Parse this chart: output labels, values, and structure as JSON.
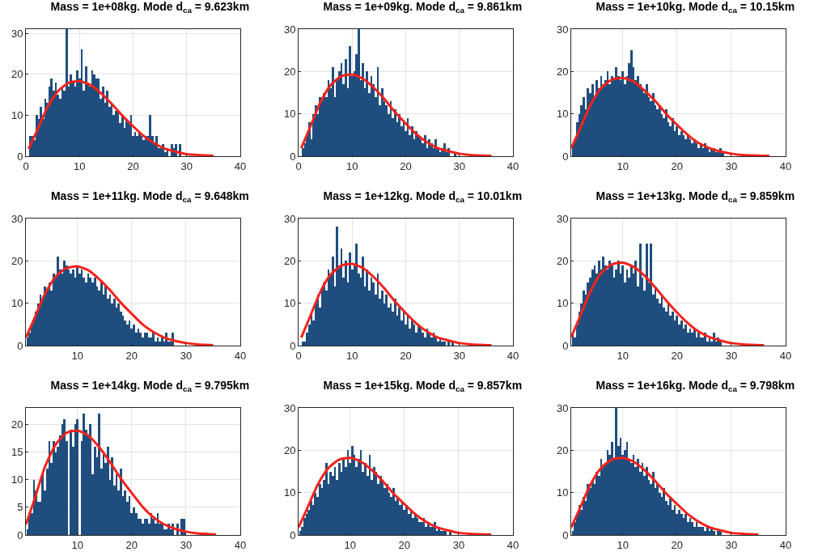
{
  "chart_data": [
    {
      "type": "histogram",
      "title": "Mass = 1e+08kg. Mode d$_{ca}$ = 9.623km",
      "xlim": [
        0,
        40
      ],
      "xticks": [
        0,
        10,
        20,
        30,
        40
      ],
      "ylim": [
        0,
        31
      ],
      "yticks": [
        0,
        10,
        20,
        30
      ],
      "grid": true,
      "series": [
        {
          "type": "histogram",
          "color": "#1f4e7e",
          "bins": [
            0.6,
            1,
            1.4,
            1.8,
            2.2,
            2.6,
            3,
            3.4,
            3.8,
            4.2,
            4.6,
            5,
            5.4,
            5.8,
            6.2,
            6.6,
            7,
            7.4,
            7.8,
            8.2,
            8.6,
            9,
            9.4,
            9.8,
            10.2,
            10.6,
            11,
            11.4,
            11.8,
            12.2,
            12.6,
            13,
            13.4,
            13.8,
            14.2,
            14.6,
            15,
            15.4,
            15.8,
            16.2,
            16.6,
            17,
            17.4,
            17.8,
            18.2,
            18.6,
            19,
            19.4,
            19.8,
            20.2,
            20.6,
            21,
            21.4,
            21.8,
            22.2,
            22.6,
            23,
            23.4,
            23.8,
            24.2,
            24.6,
            25,
            25.4,
            25.8,
            26.2,
            26.6,
            27,
            27.4,
            27.8,
            28.2,
            28.6,
            29,
            29.4,
            29.8,
            30.2,
            30.6,
            31,
            31.4,
            31.8,
            32.2,
            32.6
          ],
          "values": [
            5,
            5,
            4,
            10,
            9,
            12,
            9,
            14,
            13,
            17,
            19,
            16,
            18,
            15,
            14,
            17,
            16,
            31,
            17,
            20,
            18,
            17,
            21,
            19,
            26,
            16,
            22,
            18,
            17,
            21,
            20,
            19,
            19,
            14,
            17,
            13,
            16,
            12,
            13,
            10,
            11,
            11,
            8,
            10,
            7,
            9,
            8,
            10,
            5,
            6,
            5,
            6,
            5,
            4,
            5,
            5,
            10,
            5,
            3,
            5,
            2,
            2,
            3,
            1,
            2,
            0,
            3,
            2,
            3,
            0,
            3,
            0,
            0,
            0,
            0,
            0,
            0,
            0,
            0,
            0
          ]
        },
        {
          "type": "line",
          "color": "#f5221b",
          "x": [
            0.5,
            2,
            4,
            6,
            8,
            10,
            12,
            14,
            16,
            18,
            20,
            22,
            24,
            26,
            28,
            30,
            32,
            35
          ],
          "values": [
            1.8,
            6,
            11.9,
            15.9,
            17.9,
            18.3,
            17.4,
            15.4,
            12.8,
            9.9,
            7.3,
            4.9,
            3.1,
            1.8,
            1.1,
            0.5,
            0.3,
            0.1
          ]
        }
      ]
    },
    {
      "type": "histogram",
      "title": "Mass = 1e+09kg. Mode d$_{ca}$ = 9.861km",
      "xlim": [
        0,
        40
      ],
      "xticks": [
        0,
        10,
        20,
        30,
        40
      ],
      "ylim": [
        0,
        30
      ],
      "yticks": [
        0,
        10,
        20,
        30
      ],
      "grid": true,
      "series": [
        {
          "type": "histogram",
          "color": "#1f4e7e",
          "bins": [
            0.6,
            1,
            1.4,
            1.8,
            2.2,
            2.6,
            3,
            3.4,
            3.8,
            4.2,
            4.6,
            5,
            5.4,
            5.8,
            6.2,
            6.6,
            7,
            7.4,
            7.8,
            8.2,
            8.6,
            9,
            9.4,
            9.8,
            10.2,
            10.6,
            11,
            11.4,
            11.8,
            12.2,
            12.6,
            13,
            13.4,
            13.8,
            14.2,
            14.6,
            15,
            15.4,
            15.8,
            16.2,
            16.6,
            17,
            17.4,
            17.8,
            18.2,
            18.6,
            19,
            19.4,
            19.8,
            20.2,
            20.6,
            21,
            21.4,
            21.8,
            22.2,
            22.6,
            23,
            23.4,
            23.8,
            24.2,
            24.6,
            25,
            25.4,
            25.8,
            26.2,
            26.6,
            27,
            27.4,
            27.8,
            28.2,
            28.6,
            29,
            29.4,
            29.8,
            30.2,
            30.6,
            31,
            31.4,
            31.8,
            32.2,
            32.6
          ],
          "values": [
            2,
            3,
            5,
            8,
            4,
            10,
            12,
            10,
            14,
            13,
            15,
            14,
            18,
            16,
            21,
            14,
            18,
            20,
            22,
            17,
            23,
            16,
            26,
            19,
            20,
            24,
            30,
            18,
            22,
            16,
            20,
            15,
            19,
            17,
            14,
            21,
            12,
            16,
            13,
            12,
            10,
            13,
            9,
            11,
            8,
            10,
            7,
            8,
            6,
            9,
            5,
            7,
            4,
            6,
            5,
            4,
            3,
            5,
            2,
            4,
            3,
            2,
            4,
            2,
            1,
            2,
            3,
            1,
            2,
            0,
            0,
            1,
            0,
            0,
            0,
            0,
            0,
            0,
            0,
            0
          ]
        },
        {
          "type": "line",
          "color": "#f5221b",
          "x": [
            0.5,
            2,
            4,
            6,
            8,
            10,
            12,
            14,
            16,
            18,
            20,
            22,
            24,
            26,
            28,
            30,
            32,
            36
          ],
          "values": [
            1.9,
            6.4,
            12.5,
            16.8,
            18.9,
            19.3,
            18.3,
            16.2,
            13.5,
            10.4,
            7.7,
            5.2,
            3.3,
            1.9,
            1.2,
            0.6,
            0.3,
            0.1
          ]
        }
      ]
    },
    {
      "type": "histogram",
      "title": "Mass = 1e+10kg. Mode d$_{ca}$ = 10.15km",
      "xlim": [
        0.5,
        40
      ],
      "xticks": [
        10,
        20,
        30,
        40
      ],
      "ylim": [
        0,
        30
      ],
      "yticks": [
        0,
        10,
        20,
        30
      ],
      "grid": true,
      "series": [
        {
          "type": "histogram",
          "color": "#1f4e7e",
          "bins": [
            0.6,
            1,
            1.4,
            1.8,
            2.2,
            2.6,
            3,
            3.4,
            3.8,
            4.2,
            4.6,
            5,
            5.4,
            5.8,
            6.2,
            6.6,
            7,
            7.4,
            7.8,
            8.2,
            8.6,
            9,
            9.4,
            9.8,
            10.2,
            10.6,
            11,
            11.4,
            11.8,
            12.2,
            12.6,
            13,
            13.4,
            13.8,
            14.2,
            14.6,
            15,
            15.4,
            15.8,
            16.2,
            16.6,
            17,
            17.4,
            17.8,
            18.2,
            18.6,
            19,
            19.4,
            19.8,
            20.2,
            20.6,
            21,
            21.4,
            21.8,
            22.2,
            22.6,
            23,
            23.4,
            23.8,
            24.2,
            24.6,
            25,
            25.4,
            25.8,
            26.2,
            26.6,
            27,
            27.4,
            27.8,
            28.2,
            28.6,
            29,
            29.4,
            29.8,
            30.2,
            30.6,
            31,
            31.4,
            31.8,
            32.2,
            32.6
          ],
          "values": [
            3,
            4,
            8,
            10,
            12,
            14,
            11,
            16,
            15,
            17,
            14,
            18,
            16,
            19,
            17,
            18,
            20,
            17,
            19,
            18,
            21,
            19,
            18,
            20,
            17,
            19,
            22,
            25,
            21,
            18,
            19,
            17,
            16,
            15,
            17,
            14,
            13,
            15,
            12,
            11,
            12,
            10,
            9,
            11,
            8,
            7,
            9,
            6,
            7,
            5,
            6,
            5,
            4,
            5,
            4,
            3,
            4,
            3,
            2,
            3,
            2,
            3,
            2,
            1,
            2,
            2,
            1,
            1,
            2,
            1,
            null,
            0,
            null,
            0,
            0,
            0,
            0,
            0,
            0,
            0
          ]
        },
        {
          "type": "line",
          "color": "#f5221b",
          "x": [
            0.5,
            2,
            4,
            6,
            8,
            10,
            12,
            14,
            16,
            18,
            20,
            22,
            24,
            26,
            28,
            30,
            32,
            37
          ],
          "values": [
            1.9,
            6.1,
            12,
            16.1,
            18.1,
            18.5,
            17.6,
            15.5,
            13,
            10,
            7.4,
            5,
            3.1,
            1.9,
            1.1,
            0.6,
            0.3,
            0.1
          ]
        }
      ]
    },
    {
      "type": "histogram",
      "title": "Mass = 1e+11kg. Mode d$_{ca}$ = 9.648km",
      "xlim": [
        0.5,
        40
      ],
      "xticks": [
        10,
        20,
        30,
        40
      ],
      "ylim": [
        0,
        30
      ],
      "yticks": [
        0,
        10,
        20,
        30
      ],
      "grid": true,
      "series": [
        {
          "type": "histogram",
          "color": "#1f4e7e",
          "bins": [
            0.6,
            1,
            1.4,
            1.8,
            2.2,
            2.6,
            3,
            3.4,
            3.8,
            4.2,
            4.6,
            5,
            5.4,
            5.8,
            6.2,
            6.6,
            7,
            7.4,
            7.8,
            8.2,
            8.6,
            9,
            9.4,
            9.8,
            10.2,
            10.6,
            11,
            11.4,
            11.8,
            12.2,
            12.6,
            13,
            13.4,
            13.8,
            14.2,
            14.6,
            15,
            15.4,
            15.8,
            16.2,
            16.6,
            17,
            17.4,
            17.8,
            18.2,
            18.6,
            19,
            19.4,
            19.8,
            20.2,
            20.6,
            21,
            21.4,
            21.8,
            22.2,
            22.6,
            23,
            23.4,
            23.8,
            24.2,
            24.6,
            25,
            25.4,
            25.8,
            26.2,
            26.6,
            27,
            27.4,
            27.8,
            28.2,
            28.6,
            29,
            29.4,
            29.8,
            30.2,
            30.6,
            31,
            31.4,
            31.8,
            32.2,
            32.6
          ],
          "values": [
            2,
            3,
            5,
            6,
            8,
            10,
            12,
            11,
            14,
            13,
            15,
            13,
            17,
            16,
            21,
            18,
            17,
            20,
            19,
            18,
            17,
            18,
            16,
            19,
            17,
            18,
            16,
            15,
            17,
            16,
            15,
            16,
            14,
            13,
            15,
            12,
            14,
            11,
            12,
            10,
            11,
            9,
            10,
            8,
            7,
            6,
            5,
            6,
            4,
            5,
            3,
            4,
            3,
            2,
            3,
            3,
            2,
            2,
            3,
            1,
            2,
            1,
            2,
            1,
            3,
            1,
            1,
            3,
            0,
            0,
            0,
            0,
            0,
            0,
            0,
            0,
            0,
            0,
            0,
            0
          ]
        },
        {
          "type": "line",
          "color": "#f5221b",
          "x": [
            0.5,
            2,
            4,
            6,
            8,
            10,
            12,
            14,
            16,
            18,
            20,
            22,
            24,
            26,
            28,
            30,
            32,
            35
          ],
          "values": [
            1.9,
            6.2,
            12.2,
            16.3,
            18.3,
            18.7,
            17.8,
            15.7,
            13.1,
            10.1,
            7.5,
            5,
            3.2,
            1.9,
            1.1,
            0.6,
            0.3,
            0.1
          ]
        }
      ]
    },
    {
      "type": "histogram",
      "title": "Mass = 1e+12kg. Mode d$_{ca}$ = 10.01km",
      "xlim": [
        0,
        40
      ],
      "xticks": [
        0,
        10,
        20,
        30,
        40
      ],
      "ylim": [
        0,
        30
      ],
      "yticks": [
        0,
        10,
        20,
        30
      ],
      "grid": true,
      "series": [
        {
          "type": "histogram",
          "color": "#1f4e7e",
          "bins": [
            0.6,
            1,
            1.4,
            1.8,
            2.2,
            2.6,
            3,
            3.4,
            3.8,
            4.2,
            4.6,
            5,
            5.4,
            5.8,
            6.2,
            6.6,
            7,
            7.4,
            7.8,
            8.2,
            8.6,
            9,
            9.4,
            9.8,
            10.2,
            10.6,
            11,
            11.4,
            11.8,
            12.2,
            12.6,
            13,
            13.4,
            13.8,
            14.2,
            14.6,
            15,
            15.4,
            15.8,
            16.2,
            16.6,
            17,
            17.4,
            17.8,
            18.2,
            18.6,
            19,
            19.4,
            19.8,
            20.2,
            20.6,
            21,
            21.4,
            21.8,
            22.2,
            22.6,
            23,
            23.4,
            23.8,
            24.2,
            24.6,
            25,
            25.4,
            25.8,
            26.2,
            26.6,
            27,
            27.4,
            27.8,
            28.2,
            28.6,
            29,
            29.4,
            29.8,
            30.2,
            30.6,
            31,
            31.4,
            31.8,
            32.2,
            32.6
          ],
          "values": [
            1,
            1,
            3,
            5,
            8,
            6,
            10,
            12,
            9,
            14,
            15,
            13,
            18,
            17,
            21,
            14,
            28,
            19,
            23,
            16,
            20,
            15,
            22,
            18,
            19,
            24,
            17,
            16,
            21,
            14,
            18,
            13,
            16,
            15,
            12,
            17,
            11,
            13,
            10,
            12,
            9,
            10,
            8,
            11,
            7,
            9,
            6,
            8,
            5,
            7,
            4,
            6,
            5,
            3,
            5,
            4,
            3,
            2,
            4,
            3,
            2,
            3,
            2,
            1,
            2,
            1,
            1,
            null,
            1,
            0,
            1,
            0,
            0,
            0,
            0,
            0,
            0,
            0,
            0,
            0
          ]
        },
        {
          "type": "line",
          "color": "#f5221b",
          "x": [
            0.5,
            2,
            4,
            6,
            8,
            10,
            12,
            14,
            16,
            18,
            20,
            22,
            24,
            26,
            28,
            30,
            32,
            36
          ],
          "values": [
            1.9,
            6.4,
            12.5,
            16.8,
            18.9,
            19.3,
            18.3,
            16.2,
            13.5,
            10.4,
            7.7,
            5.2,
            3.3,
            1.9,
            1.2,
            0.6,
            0.3,
            0.1
          ]
        }
      ]
    },
    {
      "type": "histogram",
      "title": "Mass = 1e+13kg. Mode d$_{ca}$ = 9.859km",
      "xlim": [
        0.5,
        40
      ],
      "xticks": [
        10,
        20,
        30,
        40
      ],
      "ylim": [
        0,
        30
      ],
      "yticks": [
        0,
        10,
        20,
        30
      ],
      "grid": true,
      "series": [
        {
          "type": "histogram",
          "color": "#1f4e7e",
          "bins": [
            0.6,
            1,
            1.4,
            1.8,
            2.2,
            2.6,
            3,
            3.4,
            3.8,
            4.2,
            4.6,
            5,
            5.4,
            5.8,
            6.2,
            6.6,
            7,
            7.4,
            7.8,
            8.2,
            8.6,
            9,
            9.4,
            9.8,
            10.2,
            10.6,
            11,
            11.4,
            11.8,
            12.2,
            12.6,
            13,
            13.4,
            13.8,
            14.2,
            14.6,
            15,
            15.4,
            15.8,
            16.2,
            16.6,
            17,
            17.4,
            17.8,
            18.2,
            18.6,
            19,
            19.4,
            19.8,
            20.2,
            20.6,
            21,
            21.4,
            21.8,
            22.2,
            22.6,
            23,
            23.4,
            23.8,
            24.2,
            24.6,
            25,
            25.4,
            25.8,
            26.2,
            26.6,
            27,
            27.4,
            27.8,
            28.2,
            28.6,
            29,
            29.4,
            29.8,
            30.2,
            30.6,
            31,
            31.4,
            31.8,
            32.2,
            32.6
          ],
          "values": [
            3,
            2,
            5,
            8,
            10,
            13,
            12,
            15,
            16,
            18,
            19,
            17,
            20,
            18,
            21,
            19,
            18,
            20,
            19,
            16,
            18,
            20,
            17,
            19,
            15,
            18,
            16,
            19,
            17,
            20,
            14,
            24,
            16,
            13,
            24,
            15,
            24,
            12,
            14,
            11,
            10,
            12,
            9,
            8,
            10,
            7,
            8,
            6,
            7,
            5,
            6,
            4,
            5,
            3,
            4,
            3,
            4,
            2,
            3,
            2,
            2,
            3,
            1,
            2,
            1,
            3,
            1,
            2,
            1,
            0,
            null,
            0,
            0,
            0,
            0,
            0,
            0,
            0,
            0,
            0
          ]
        },
        {
          "type": "line",
          "color": "#f5221b",
          "x": [
            0.5,
            2,
            4,
            6,
            8,
            10,
            12,
            14,
            16,
            18,
            20,
            22,
            24,
            26,
            28,
            30,
            32,
            36
          ],
          "values": [
            2,
            6.5,
            12.7,
            17.1,
            19.2,
            19.6,
            18.6,
            16.5,
            13.7,
            10.6,
            7.8,
            5.3,
            3.3,
            2,
            1.2,
            0.6,
            0.3,
            0.1
          ]
        }
      ]
    },
    {
      "type": "histogram",
      "title": "Mass = 1e+14kg. Mode d$_{ca}$ = 9.795km",
      "xlim": [
        0.5,
        40
      ],
      "xticks": [
        10,
        20,
        30,
        40
      ],
      "ylim": [
        0,
        23
      ],
      "yticks": [
        0,
        5,
        10,
        15,
        20
      ],
      "grid": true,
      "series": [
        {
          "type": "histogram",
          "color": "#1f4e7e",
          "bins": [
            0.6,
            1,
            1.4,
            1.8,
            2.2,
            2.6,
            3,
            3.4,
            3.8,
            4.2,
            4.6,
            5,
            5.4,
            5.8,
            6.2,
            6.6,
            7,
            7.4,
            7.8,
            8.2,
            8.6,
            9,
            9.4,
            9.8,
            10.2,
            10.6,
            11,
            11.4,
            11.8,
            12.2,
            12.6,
            13,
            13.4,
            13.8,
            14.2,
            14.6,
            15,
            15.4,
            15.8,
            16.2,
            16.6,
            17,
            17.4,
            17.8,
            18.2,
            18.6,
            19,
            19.4,
            19.8,
            20.2,
            20.6,
            21,
            21.4,
            21.8,
            22.2,
            22.6,
            23,
            23.4,
            23.8,
            24.2,
            24.6,
            25,
            25.4,
            25.8,
            26.2,
            26.6,
            27,
            27.4,
            27.8,
            28.2,
            28.6,
            29,
            29.4,
            29.8,
            30.2,
            30.6,
            31,
            31.4,
            31.8,
            32.2,
            32.6
          ],
          "values": [
            1,
            4,
            4,
            10,
            8,
            6,
            6,
            11,
            8,
            12,
            17,
            13,
            17,
            15,
            16,
            18,
            20,
            21,
            17,
            null,
            19,
            16,
            20,
            21,
            null,
            17,
            22,
            19,
            18,
            20,
            11,
            16,
            14,
            22,
            12,
            15,
            13,
            16,
            10,
            14,
            9,
            11,
            8,
            12,
            7,
            8,
            6,
            7,
            4,
            5,
            4,
            3,
            3,
            2,
            3,
            3,
            2,
            4,
            3,
            2,
            4,
            2,
            2,
            1,
            1,
            2,
            1,
            2,
            0,
            2,
            null,
            3,
            3,
            null,
            0,
            0,
            0,
            0,
            0,
            0
          ]
        },
        {
          "type": "line",
          "color": "#f5221b",
          "x": [
            0.5,
            2,
            4,
            6,
            8,
            10,
            12,
            14,
            16,
            18,
            20,
            22,
            24,
            26,
            28,
            30,
            32,
            35.5
          ],
          "values": [
            1.9,
            6.2,
            12.3,
            16.4,
            18.5,
            18.9,
            18,
            15.9,
            13.2,
            10.2,
            7.6,
            5.1,
            3.2,
            1.9,
            1.1,
            0.6,
            0.3,
            0.1
          ]
        }
      ]
    },
    {
      "type": "histogram",
      "title": "Mass = 1e+15kg. Mode d$_{ca}$ = 9.857km",
      "xlim": [
        0.5,
        40
      ],
      "xticks": [
        10,
        20,
        30,
        40
      ],
      "ylim": [
        0,
        30
      ],
      "yticks": [
        0,
        10,
        20,
        30
      ],
      "grid": true,
      "series": [
        {
          "type": "histogram",
          "color": "#1f4e7e",
          "bins": [
            0.6,
            1,
            1.4,
            1.8,
            2.2,
            2.6,
            3,
            3.4,
            3.8,
            4.2,
            4.6,
            5,
            5.4,
            5.8,
            6.2,
            6.6,
            7,
            7.4,
            7.8,
            8.2,
            8.6,
            9,
            9.4,
            9.8,
            10.2,
            10.6,
            11,
            11.4,
            11.8,
            12.2,
            12.6,
            13,
            13.4,
            13.8,
            14.2,
            14.6,
            15,
            15.4,
            15.8,
            16.2,
            16.6,
            17,
            17.4,
            17.8,
            18.2,
            18.6,
            19,
            19.4,
            19.8,
            20.2,
            20.6,
            21,
            21.4,
            21.8,
            22.2,
            22.6,
            23,
            23.4,
            23.8,
            24.2,
            24.6,
            25,
            25.4,
            25.8,
            26.2,
            26.6,
            27,
            27.4,
            27.8,
            28.2,
            28.6,
            29,
            29.4,
            29.8,
            30.2,
            30.6,
            31,
            31.4,
            31.8,
            32.2,
            32.6
          ],
          "values": [
            1,
            2,
            4,
            5,
            6,
            8,
            7,
            10,
            9,
            12,
            11,
            13,
            17,
            12,
            15,
            14,
            16,
            13,
            17,
            15,
            18,
            16,
            20,
            17,
            21,
            19,
            16,
            18,
            20,
            15,
            17,
            14,
            19,
            13,
            16,
            15,
            12,
            14,
            13,
            11,
            12,
            10,
            9,
            11,
            8,
            9,
            7,
            8,
            6,
            7,
            5,
            6,
            4,
            5,
            4,
            3,
            3,
            4,
            2,
            3,
            2,
            2,
            3,
            1,
            2,
            1,
            1,
            1,
            0,
            1,
            0,
            0,
            0,
            0,
            0,
            0,
            0,
            0,
            0,
            0
          ]
        },
        {
          "type": "line",
          "color": "#f5221b",
          "x": [
            0.5,
            2,
            4,
            6,
            8,
            10,
            12,
            14,
            16,
            18,
            20,
            22,
            24,
            26,
            28,
            30,
            32,
            36
          ],
          "values": [
            1.8,
            6,
            11.8,
            15.8,
            17.8,
            18.2,
            17.3,
            15.3,
            12.7,
            9.8,
            7.3,
            4.9,
            3.1,
            1.8,
            1.1,
            0.5,
            0.3,
            0.1
          ]
        }
      ]
    },
    {
      "type": "histogram",
      "title": "Mass = 1e+16kg. Mode d$_{ca}$ = 9.798km",
      "xlim": [
        0.5,
        40
      ],
      "xticks": [
        10,
        20,
        30,
        40
      ],
      "ylim": [
        0,
        30
      ],
      "yticks": [
        0,
        10,
        20,
        30
      ],
      "grid": true,
      "series": [
        {
          "type": "histogram",
          "color": "#1f4e7e",
          "bins": [
            0.6,
            1,
            1.4,
            1.8,
            2.2,
            2.6,
            3,
            3.4,
            3.8,
            4.2,
            4.6,
            5,
            5.4,
            5.8,
            6.2,
            6.6,
            7,
            7.4,
            7.8,
            8.2,
            8.6,
            9,
            9.4,
            9.8,
            10.2,
            10.6,
            11,
            11.4,
            11.8,
            12.2,
            12.6,
            13,
            13.4,
            13.8,
            14.2,
            14.6,
            15,
            15.4,
            15.8,
            16.2,
            16.6,
            17,
            17.4,
            17.8,
            18.2,
            18.6,
            19,
            19.4,
            19.8,
            20.2,
            20.6,
            21,
            21.4,
            21.8,
            22.2,
            22.6,
            23,
            23.4,
            23.8,
            24.2,
            24.6,
            25,
            25.4,
            25.8,
            26.2,
            26.6,
            27,
            27.4,
            27.8,
            28.2,
            28.6,
            29,
            29.4,
            29.8,
            30.2,
            30.6,
            31,
            31.4,
            31.8,
            32.2,
            32.6
          ],
          "values": [
            1,
            3,
            5,
            7,
            6,
            9,
            8,
            12,
            11,
            13,
            12,
            15,
            14,
            18,
            16,
            17,
            20,
            19,
            22,
            18,
            30,
            21,
            23,
            19,
            20,
            22,
            18,
            17,
            19,
            16,
            18,
            15,
            17,
            14,
            16,
            13,
            12,
            15,
            11,
            12,
            10,
            9,
            11,
            8,
            7,
            9,
            6,
            7,
            5,
            6,
            5,
            4,
            5,
            3,
            4,
            3,
            2,
            3,
            2,
            2,
            2,
            1,
            2,
            1,
            2,
            1,
            0,
            1,
            1,
            0,
            0,
            0,
            0,
            0,
            0,
            0,
            0,
            0,
            0,
            0
          ]
        },
        {
          "type": "line",
          "color": "#f5221b",
          "x": [
            0.5,
            2,
            4,
            6,
            8,
            10,
            12,
            14,
            16,
            18,
            20,
            22,
            24,
            26,
            28,
            30,
            32,
            35
          ],
          "values": [
            1.8,
            6,
            11.8,
            15.8,
            17.8,
            18.2,
            17.3,
            15.3,
            12.7,
            9.8,
            7.3,
            4.9,
            3.1,
            1.8,
            1.1,
            0.5,
            0.3,
            0.1
          ]
        }
      ]
    }
  ]
}
